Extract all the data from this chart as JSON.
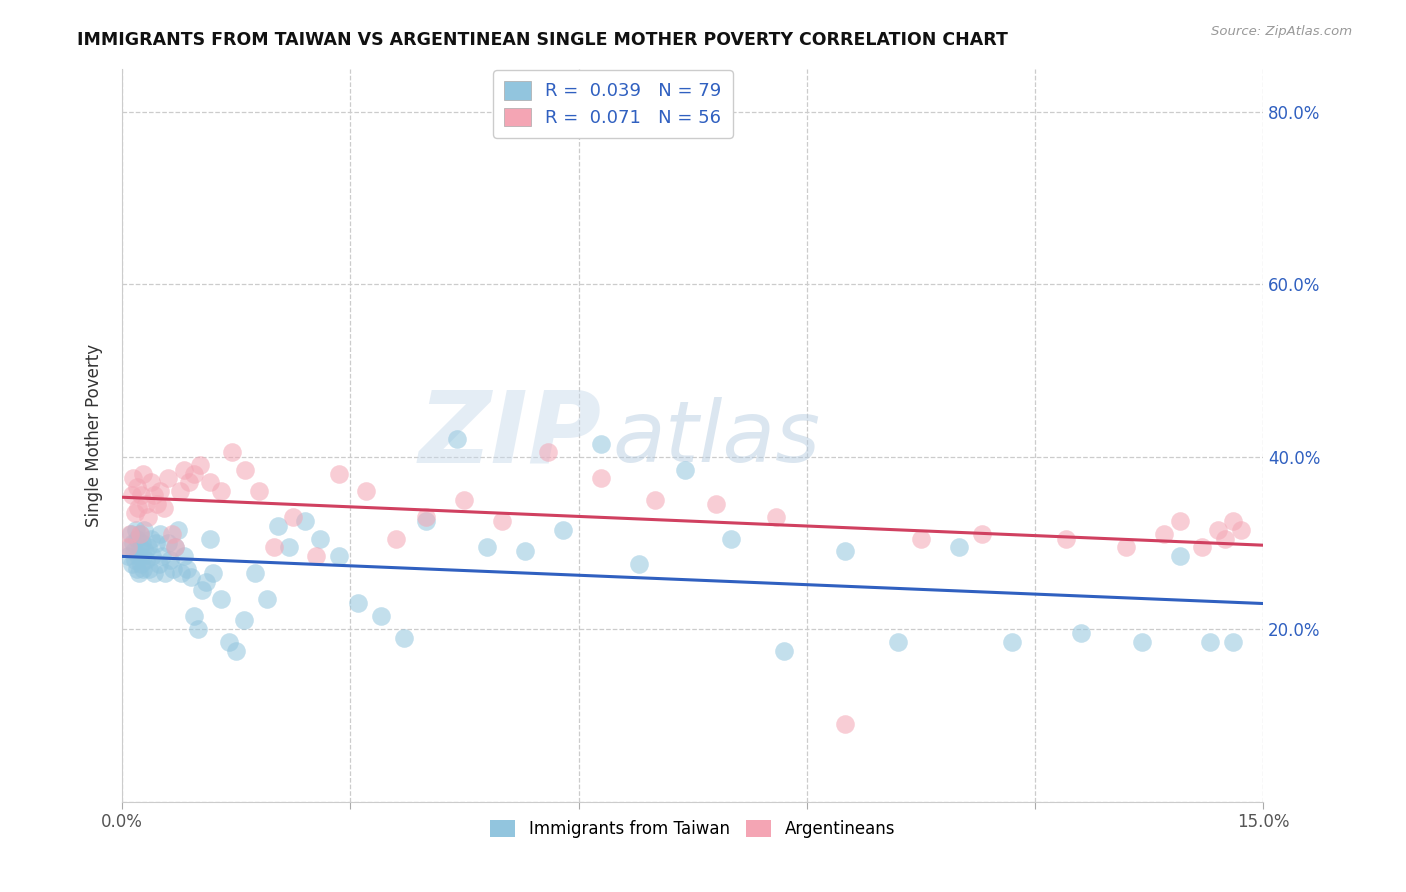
{
  "title": "IMMIGRANTS FROM TAIWAN VS ARGENTINEAN SINGLE MOTHER POVERTY CORRELATION CHART",
  "source": "Source: ZipAtlas.com",
  "ylabel": "Single Mother Poverty",
  "xlim": [
    0.0,
    0.15
  ],
  "ylim": [
    0.0,
    0.85
  ],
  "legend_blue_r": "0.039",
  "legend_blue_n": "79",
  "legend_pink_r": "0.071",
  "legend_pink_n": "56",
  "blue_color": "#92c5de",
  "pink_color": "#f4a5b4",
  "trend_blue": "#3060c0",
  "trend_pink": "#d04060",
  "watermark_zip": "ZIP",
  "watermark_atlas": "atlas",
  "blue_x": [
    0.0008,
    0.001,
    0.0012,
    0.0013,
    0.0015,
    0.0016,
    0.0017,
    0.0018,
    0.0019,
    0.002,
    0.0021,
    0.0022,
    0.0023,
    0.0024,
    0.0025,
    0.0026,
    0.0027,
    0.0028,
    0.0029,
    0.003,
    0.0032,
    0.0034,
    0.0036,
    0.0038,
    0.004,
    0.0042,
    0.0045,
    0.0048,
    0.005,
    0.0053,
    0.0056,
    0.006,
    0.0063,
    0.0067,
    0.007,
    0.0074,
    0.0078,
    0.0082,
    0.0086,
    0.009,
    0.0095,
    0.01,
    0.0105,
    0.011,
    0.0115,
    0.012,
    0.013,
    0.014,
    0.015,
    0.016,
    0.0175,
    0.019,
    0.0205,
    0.022,
    0.024,
    0.026,
    0.0285,
    0.031,
    0.034,
    0.037,
    0.04,
    0.044,
    0.048,
    0.053,
    0.058,
    0.063,
    0.068,
    0.074,
    0.08,
    0.087,
    0.095,
    0.102,
    0.11,
    0.117,
    0.126,
    0.134,
    0.139,
    0.143,
    0.146
  ],
  "blue_y": [
    0.285,
    0.295,
    0.31,
    0.275,
    0.3,
    0.29,
    0.28,
    0.315,
    0.27,
    0.305,
    0.285,
    0.265,
    0.295,
    0.31,
    0.275,
    0.3,
    0.285,
    0.27,
    0.315,
    0.29,
    0.28,
    0.295,
    0.27,
    0.305,
    0.285,
    0.265,
    0.3,
    0.275,
    0.31,
    0.285,
    0.265,
    0.3,
    0.28,
    0.27,
    0.295,
    0.315,
    0.265,
    0.285,
    0.27,
    0.26,
    0.215,
    0.2,
    0.245,
    0.255,
    0.305,
    0.265,
    0.235,
    0.185,
    0.175,
    0.21,
    0.265,
    0.235,
    0.32,
    0.295,
    0.325,
    0.305,
    0.285,
    0.23,
    0.215,
    0.19,
    0.325,
    0.42,
    0.295,
    0.29,
    0.315,
    0.415,
    0.275,
    0.385,
    0.305,
    0.175,
    0.29,
    0.185,
    0.295,
    0.185,
    0.195,
    0.185,
    0.285,
    0.185,
    0.185
  ],
  "pink_x": [
    0.0008,
    0.001,
    0.0013,
    0.0015,
    0.0017,
    0.0019,
    0.0021,
    0.0023,
    0.0025,
    0.0028,
    0.0031,
    0.0034,
    0.0038,
    0.0042,
    0.0046,
    0.005,
    0.0055,
    0.006,
    0.0065,
    0.007,
    0.0076,
    0.0082,
    0.0088,
    0.0095,
    0.0103,
    0.0115,
    0.013,
    0.0145,
    0.0162,
    0.018,
    0.02,
    0.0225,
    0.0255,
    0.0285,
    0.032,
    0.036,
    0.04,
    0.045,
    0.05,
    0.056,
    0.063,
    0.07,
    0.078,
    0.086,
    0.095,
    0.105,
    0.113,
    0.124,
    0.132,
    0.137,
    0.139,
    0.142,
    0.144,
    0.145,
    0.146,
    0.147
  ],
  "pink_y": [
    0.295,
    0.31,
    0.355,
    0.375,
    0.335,
    0.365,
    0.34,
    0.31,
    0.355,
    0.38,
    0.345,
    0.33,
    0.37,
    0.355,
    0.345,
    0.36,
    0.34,
    0.375,
    0.31,
    0.295,
    0.36,
    0.385,
    0.37,
    0.38,
    0.39,
    0.37,
    0.36,
    0.405,
    0.385,
    0.36,
    0.295,
    0.33,
    0.285,
    0.38,
    0.36,
    0.305,
    0.33,
    0.35,
    0.325,
    0.405,
    0.375,
    0.35,
    0.345,
    0.33,
    0.09,
    0.305,
    0.31,
    0.305,
    0.295,
    0.31,
    0.325,
    0.295,
    0.315,
    0.305,
    0.325,
    0.315
  ]
}
